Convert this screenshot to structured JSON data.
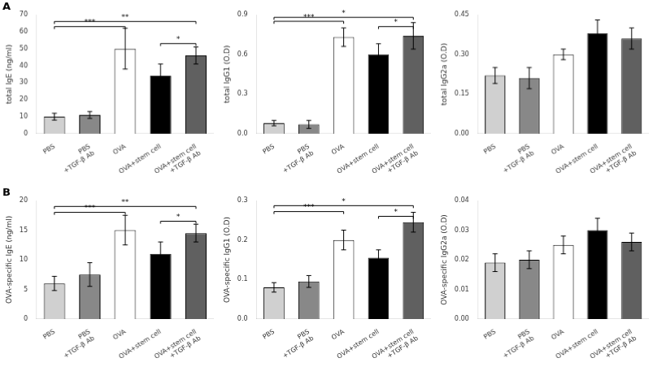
{
  "chart_data": [
    {
      "type": "bar",
      "title": "A",
      "categories": [
        "PBS",
        "PBS\n+TGF-β Ab",
        "OVA",
        "OVA+stem cell",
        "OVA+stem cell\n+TGF-β Ab"
      ],
      "ylabel": "total IgE (ng/ml)",
      "values": [
        10,
        11,
        50,
        34,
        46
      ],
      "errors": [
        2,
        2,
        12,
        7,
        5
      ],
      "colors": [
        "#d0d0d0",
        "#888888",
        "#ffffff",
        "#000000",
        "#606060"
      ],
      "ylim": [
        0,
        70
      ],
      "yticks": [
        0,
        10,
        20,
        30,
        40,
        50,
        60,
        70
      ],
      "grid": false,
      "annotations": [
        {
          "from": "PBS",
          "to": "OVA",
          "y": 63,
          "text": "***"
        },
        {
          "from": "PBS",
          "to": "OVA+stem cell\n+TGF-β Ab",
          "y": 66,
          "text": "**"
        },
        {
          "from": "OVA+stem cell",
          "to": "OVA+stem cell\n+TGF-β Ab",
          "y": 53,
          "text": "*"
        }
      ]
    },
    {
      "type": "bar",
      "categories": [
        "PBS",
        "PBS\n+TGF-β Ab",
        "OVA",
        "OVA+stem cell",
        "OVA+stem cell\n+TGF-β Ab"
      ],
      "ylabel": "total IgG1 (O.D)",
      "values": [
        0.08,
        0.07,
        0.73,
        0.6,
        0.74
      ],
      "errors": [
        0.02,
        0.03,
        0.07,
        0.08,
        0.1
      ],
      "colors": [
        "#d0d0d0",
        "#888888",
        "#ffffff",
        "#000000",
        "#606060"
      ],
      "ylim": [
        0,
        0.9
      ],
      "yticks": [
        {
          "value": 0,
          "label": "0.0"
        },
        0.3,
        0.6,
        0.9
      ],
      "grid": false,
      "annotations": [
        {
          "from": "PBS",
          "to": "OVA",
          "y": 0.85,
          "text": "***"
        },
        {
          "from": "PBS",
          "to": "OVA+stem cell\n+TGF-β Ab",
          "y": 0.88,
          "text": "*"
        },
        {
          "from": "OVA+stem cell",
          "to": "OVA+stem cell\n+TGF-β Ab",
          "y": 0.81,
          "text": "*"
        }
      ]
    },
    {
      "type": "bar",
      "categories": [
        "PBS",
        "PBS\n+TGF-β Ab",
        "OVA",
        "OVA+stem cell",
        "OVA+stem cell\n+TGF-β Ab"
      ],
      "ylabel": "total IgG2a (O.D)",
      "values": [
        0.22,
        0.21,
        0.3,
        0.38,
        0.36
      ],
      "errors": [
        0.03,
        0.04,
        0.02,
        0.05,
        0.04
      ],
      "colors": [
        "#d0d0d0",
        "#888888",
        "#ffffff",
        "#000000",
        "#606060"
      ],
      "ylim": [
        0,
        0.45
      ],
      "yticks": [
        {
          "value": 0,
          "label": "0.00"
        },
        0.15,
        {
          "value": 0.3,
          "label": "0.30"
        },
        0.45
      ],
      "grid": false
    },
    {
      "type": "bar",
      "title": "B",
      "categories": [
        "PBS",
        "PBS\n+TGF-β Ab",
        "OVA",
        "OVA+stem cell",
        "OVA+stem cell\n+TGF-β Ab"
      ],
      "ylabel": "OVA-specific IgE (ng/ml)",
      "values": [
        6,
        7.5,
        15,
        11,
        14.5
      ],
      "errors": [
        1.2,
        2.0,
        2.5,
        2.0,
        1.5
      ],
      "colors": [
        "#d0d0d0",
        "#888888",
        "#ffffff",
        "#000000",
        "#606060"
      ],
      "ylim": [
        0,
        20
      ],
      "yticks": [
        0,
        5,
        10,
        15,
        20
      ],
      "grid": false,
      "annotations": [
        {
          "from": "PBS",
          "to": "OVA",
          "y": 18.0,
          "text": "***"
        },
        {
          "from": "PBS",
          "to": "OVA+stem cell\n+TGF-β Ab",
          "y": 19.0,
          "text": "**"
        },
        {
          "from": "OVA+stem cell",
          "to": "OVA+stem cell\n+TGF-β Ab",
          "y": 16.5,
          "text": "*"
        }
      ]
    },
    {
      "type": "bar",
      "categories": [
        "PBS",
        "PBS\n+TGF-β Ab",
        "OVA",
        "OVA+stem cell",
        "OVA+stem cell\n+TGF-β Ab"
      ],
      "ylabel": "OVA-specific IgG1 (O.D)",
      "values": [
        0.08,
        0.095,
        0.2,
        0.155,
        0.245
      ],
      "errors": [
        0.012,
        0.015,
        0.025,
        0.02,
        0.025
      ],
      "colors": [
        "#d0d0d0",
        "#888888",
        "#ffffff",
        "#000000",
        "#606060"
      ],
      "ylim": [
        0,
        0.3
      ],
      "yticks": [
        {
          "value": 0,
          "label": "0.0"
        },
        0.1,
        0.2,
        0.3
      ],
      "grid": false,
      "annotations": [
        {
          "from": "PBS",
          "to": "OVA",
          "y": 0.272,
          "text": "***"
        },
        {
          "from": "PBS",
          "to": "OVA+stem cell\n+TGF-β Ab",
          "y": 0.287,
          "text": "*"
        },
        {
          "from": "OVA+stem cell",
          "to": "OVA+stem cell\n+TGF-β Ab",
          "y": 0.26,
          "text": "*"
        }
      ]
    },
    {
      "type": "bar",
      "categories": [
        "PBS",
        "PBS\n+TGF-β Ab",
        "OVA",
        "OVA+stem cell",
        "OVA+stem cell\n+TGF-β Ab"
      ],
      "ylabel": "OVA-specific IgG2a (O.D)",
      "values": [
        0.019,
        0.02,
        0.025,
        0.03,
        0.026
      ],
      "errors": [
        0.003,
        0.003,
        0.003,
        0.004,
        0.003
      ],
      "colors": [
        "#d0d0d0",
        "#888888",
        "#ffffff",
        "#000000",
        "#606060"
      ],
      "ylim": [
        0,
        0.04
      ],
      "yticks": [
        {
          "value": 0,
          "label": "0.00"
        },
        0.01,
        0.02,
        0.03,
        0.04
      ],
      "grid": false
    }
  ]
}
